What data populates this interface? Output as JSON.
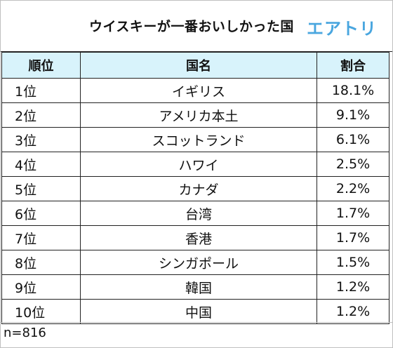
{
  "header": {
    "title": "ウイスキーが一番おいしかった国",
    "logo_text": "エアトリ"
  },
  "table": {
    "columns": [
      "順位",
      "国名",
      "割合"
    ],
    "rows": [
      {
        "rank": "1位",
        "country": "イギリス",
        "share": "18.1%"
      },
      {
        "rank": "2位",
        "country": "アメリカ本土",
        "share": "9.1%"
      },
      {
        "rank": "3位",
        "country": "スコットランド",
        "share": "6.1%"
      },
      {
        "rank": "4位",
        "country": "ハワイ",
        "share": "2.5%"
      },
      {
        "rank": "5位",
        "country": "カナダ",
        "share": "2.2%"
      },
      {
        "rank": "6位",
        "country": "台湾",
        "share": "1.7%"
      },
      {
        "rank": "7位",
        "country": "香港",
        "share": "1.7%"
      },
      {
        "rank": "8位",
        "country": "シンガポール",
        "share": "1.5%"
      },
      {
        "rank": "9位",
        "country": "韓国",
        "share": "1.2%"
      },
      {
        "rank": "10位",
        "country": "中国",
        "share": "1.2%"
      }
    ]
  },
  "footer": {
    "note": "n=816"
  },
  "colors": {
    "header_fill": "#d8f3fb",
    "logo": "#49a6df",
    "border": "#222222"
  }
}
